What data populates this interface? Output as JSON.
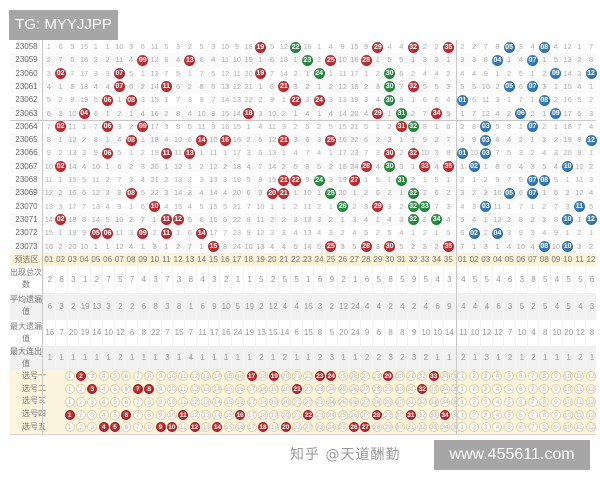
{
  "watermarks": {
    "tg": "TG: MYYJJPP",
    "site": "www.455611.com",
    "zhihu": "知乎 @天道酬勤"
  },
  "colors": {
    "red_ball": "#b5282e",
    "green_ball": "#1e8a3a",
    "blue_ball": "#2d74b0",
    "header_bg": "#fbf3d6"
  },
  "rows": [
    {
      "issue": "23058",
      "red": [
        1,
        6,
        5,
        15,
        1,
        1,
        10,
        3,
        6,
        11,
        5,
        3,
        2,
        5,
        3,
        10,
        9,
        18,
        "19",
        5,
        12,
        "22",
        16,
        1,
        4,
        9,
        15,
        9,
        "29",
        4,
        4,
        "32",
        2,
        2,
        "35"
      ],
      "blue": [
        2,
        2,
        7,
        8,
        "05",
        3,
        4,
        "08",
        4,
        12,
        1,
        7
      ],
      "green": [
        22
      ]
    },
    {
      "issue": "23059",
      "red": [
        2,
        7,
        6,
        16,
        2,
        2,
        11,
        4,
        "09",
        12,
        6,
        4,
        "13",
        6,
        4,
        11,
        10,
        19,
        1,
        6,
        13,
        1,
        "23",
        2,
        "25",
        10,
        16,
        "28",
        1,
        5,
        5,
        1,
        3,
        3,
        1
      ],
      "blue": [
        3,
        3,
        8,
        "04",
        1,
        4,
        "07",
        1,
        5,
        13,
        2,
        8
      ],
      "green": [
        23
      ]
    },
    {
      "issue": "23060",
      "red": [
        3,
        "02",
        7,
        17,
        3,
        3,
        "07",
        5,
        1,
        13,
        7,
        5,
        1,
        7,
        5,
        12,
        11,
        20,
        "19",
        7,
        14,
        2,
        1,
        "24",
        1,
        11,
        17,
        1,
        2,
        "30",
        6,
        2,
        4,
        4,
        2
      ],
      "blue": [
        4,
        4,
        9,
        1,
        2,
        5,
        1,
        2,
        "09",
        14,
        3,
        "12"
      ],
      "green": [
        24,
        30
      ]
    },
    {
      "issue": "23061",
      "red": [
        4,
        1,
        8,
        18,
        4,
        4,
        "07",
        6,
        2,
        14,
        "11",
        6,
        2,
        8,
        6,
        13,
        12,
        21,
        1,
        8,
        "21",
        3,
        2,
        1,
        2,
        12,
        18,
        2,
        3,
        "30",
        7,
        "32",
        5,
        5,
        3
      ],
      "blue": [
        5,
        5,
        10,
        2,
        "05",
        6,
        "07",
        3,
        1,
        15,
        4,
        1
      ],
      "green": [
        30
      ]
    },
    {
      "issue": "23062",
      "red": [
        5,
        2,
        9,
        19,
        5,
        "06",
        1,
        "08",
        3,
        15,
        1,
        7,
        3,
        9,
        7,
        14,
        13,
        22,
        2,
        9,
        1,
        "22",
        3,
        "24",
        3,
        13,
        19,
        3,
        4,
        "30",
        8,
        1,
        6,
        6,
        4
      ],
      "blue": [
        "01",
        6,
        11,
        3,
        1,
        7,
        1,
        "08",
        2,
        16,
        5,
        2
      ],
      "green": [
        30
      ]
    },
    {
      "issue": "23063",
      "red": [
        6,
        3,
        10,
        "04",
        6,
        1,
        2,
        1,
        4,
        16,
        2,
        8,
        4,
        10,
        8,
        15,
        14,
        "18",
        3,
        10,
        2,
        1,
        4,
        1,
        4,
        14,
        20,
        4,
        "29",
        1,
        "31",
        2,
        7,
        "34",
        5
      ],
      "blue": [
        1,
        7,
        12,
        4,
        2,
        "06",
        2,
        1,
        "09",
        17,
        6,
        3
      ],
      "green": [
        31
      ]
    },
    {
      "issue": "23064",
      "red": [
        7,
        "02",
        11,
        1,
        7,
        "06",
        3,
        2,
        "09",
        17,
        3,
        9,
        5,
        11,
        9,
        16,
        15,
        1,
        4,
        11,
        3,
        2,
        5,
        2,
        5,
        15,
        21,
        5,
        1,
        2,
        "31",
        "32",
        8,
        1,
        6
      ],
      "blue": [
        2,
        8,
        "03",
        5,
        3,
        1,
        "07",
        2,
        1,
        18,
        7,
        4
      ],
      "green": [
        32
      ]
    },
    {
      "issue": "23065",
      "red": [
        8,
        1,
        12,
        2,
        8,
        1,
        4,
        "08",
        1,
        18,
        4,
        10,
        6,
        "14",
        10,
        "16",
        16,
        2,
        5,
        12,
        "21",
        3,
        6,
        3,
        "25",
        16,
        22,
        6,
        2,
        3,
        1,
        1,
        9,
        2,
        7
      ],
      "blue": [
        3,
        9,
        "03",
        6,
        4,
        2,
        1,
        3,
        2,
        19,
        8,
        "12"
      ],
      "green": []
    },
    {
      "issue": "23066",
      "red": [
        9,
        2,
        13,
        3,
        9,
        "06",
        5,
        1,
        2,
        19,
        "11",
        11,
        "13",
        1,
        11,
        1,
        17,
        3,
        6,
        13,
        1,
        4,
        7,
        4,
        1,
        17,
        23,
        7,
        3,
        "30",
        2,
        "32",
        10,
        3,
        8
      ],
      "blue": [
        "01",
        10,
        "03",
        7,
        5,
        3,
        2,
        4,
        3,
        20,
        9,
        1
      ],
      "green": []
    },
    {
      "issue": "23067",
      "red": [
        10,
        "02",
        14,
        4,
        10,
        1,
        6,
        2,
        3,
        20,
        1,
        12,
        1,
        2,
        12,
        2,
        18,
        4,
        7,
        14,
        2,
        5,
        8,
        5,
        2,
        18,
        24,
        "28",
        4,
        "30",
        3,
        1,
        "33",
        4,
        "35"
      ],
      "blue": [
        1,
        "02",
        1,
        8,
        6,
        4,
        3,
        5,
        4,
        "10",
        10,
        2
      ],
      "green": [
        30
      ]
    },
    {
      "issue": "23068",
      "red": [
        11,
        1,
        15,
        5,
        11,
        2,
        7,
        3,
        4,
        21,
        2,
        13,
        2,
        3,
        13,
        3,
        19,
        5,
        8,
        15,
        "21",
        "22",
        9,
        "24",
        3,
        19,
        "27",
        1,
        5,
        1,
        "31",
        2,
        1,
        5,
        1
      ],
      "blue": [
        2,
        1,
        2,
        9,
        7,
        5,
        "07",
        "08",
        5,
        1,
        11,
        3
      ],
      "green": [
        24,
        31
      ]
    },
    {
      "issue": "23069",
      "red": [
        12,
        2,
        16,
        6,
        12,
        3,
        8,
        "08",
        5,
        22,
        3,
        14,
        3,
        4,
        14,
        4,
        20,
        6,
        9,
        "20",
        "21",
        1,
        10,
        1,
        "25",
        20,
        1,
        2,
        6,
        2,
        1,
        "32",
        2,
        6,
        2
      ],
      "blue": [
        3,
        2,
        3,
        10,
        "05",
        6,
        "07",
        1,
        6,
        2,
        12,
        4
      ],
      "green": [
        25,
        32
      ]
    },
    {
      "issue": "23070",
      "red": [
        13,
        3,
        17,
        7,
        13,
        4,
        9,
        1,
        6,
        "10",
        4,
        15,
        4,
        5,
        15,
        5,
        21,
        7,
        10,
        1,
        1,
        2,
        11,
        2,
        1,
        "26",
        2,
        3,
        "29",
        3,
        2,
        "32",
        "33",
        7,
        3
      ],
      "blue": [
        4,
        3,
        "03",
        11,
        1,
        7,
        1,
        2,
        7,
        3,
        "11",
        5
      ],
      "green": [
        26,
        32,
        33
      ]
    },
    {
      "issue": "23071",
      "red": [
        14,
        "02",
        18,
        8,
        14,
        5,
        10,
        2,
        7,
        1,
        "11",
        "12",
        5,
        6,
        16,
        6,
        22,
        8,
        11,
        2,
        2,
        3,
        12,
        3,
        2,
        1,
        3,
        4,
        1,
        4,
        3,
        "32",
        1,
        "34",
        4
      ],
      "blue": [
        5,
        4,
        1,
        12,
        2,
        8,
        2,
        3,
        8,
        "10",
        1,
        "12"
      ],
      "green": [
        32,
        34
      ]
    },
    {
      "issue": "23072",
      "red": [
        15,
        1,
        19,
        9,
        "05",
        "06",
        11,
        3,
        "09",
        2,
        "11",
        1,
        6,
        "14",
        17,
        7,
        23,
        9,
        12,
        3,
        3,
        4,
        13,
        4,
        3,
        2,
        4,
        5,
        2,
        5,
        4,
        1,
        2,
        1,
        5
      ],
      "blue": [
        6,
        "02",
        2,
        "04",
        3,
        9,
        3,
        4,
        9,
        1,
        2,
        1
      ],
      "green": []
    },
    {
      "issue": "23073",
      "red": [
        16,
        2,
        20,
        10,
        1,
        1,
        12,
        4,
        1,
        3,
        1,
        2,
        7,
        1,
        "15",
        8,
        24,
        10,
        13,
        4,
        4,
        5,
        14,
        5,
        "25",
        3,
        5,
        "28",
        3,
        "30",
        5,
        2,
        3,
        2,
        "35"
      ],
      "blue": [
        7,
        1,
        3,
        1,
        4,
        10,
        4,
        "08",
        10,
        "10",
        3,
        2
      ],
      "green": []
    }
  ],
  "header": {
    "label": "预选区",
    "red": [
      "01",
      "02",
      "03",
      "04",
      "05",
      "06",
      "07",
      "08",
      "09",
      "10",
      "11",
      "12",
      "13",
      "14",
      "15",
      "16",
      "17",
      "18",
      "19",
      "20",
      "21",
      "22",
      "23",
      "24",
      "25",
      "26",
      "27",
      "28",
      "29",
      "30",
      "31",
      "32",
      "33",
      "34",
      "35"
    ],
    "blue": [
      "01",
      "02",
      "03",
      "04",
      "05",
      "06",
      "07",
      "08",
      "09",
      "10",
      "11",
      "12"
    ]
  },
  "stats": [
    {
      "label": "出现总次数",
      "red": [
        2,
        6,
        3,
        1,
        2,
        7,
        5,
        7,
        4,
        3,
        7,
        3,
        8,
        4,
        3,
        2,
        1,
        1,
        5,
        2,
        5,
        5,
        1,
        6,
        9,
        2,
        1,
        6,
        5,
        8,
        5,
        9,
        5,
        4,
        3
      ],
      "blue": [
        4,
        5,
        5,
        4,
        6,
        3,
        8,
        5,
        4,
        5,
        5,
        6
      ]
    },
    {
      "label": "平均遗漏值",
      "red": [
        6,
        3,
        2,
        19,
        13,
        3,
        2,
        2,
        6,
        8,
        3,
        8,
        1,
        6,
        9,
        10,
        5,
        19,
        2,
        12,
        4,
        4,
        15,
        3,
        2,
        12,
        24,
        4,
        4,
        2,
        4,
        2,
        4,
        6,
        9
      ],
      "blue": [
        4,
        4,
        4,
        6,
        3,
        5,
        2,
        5,
        4,
        5,
        4,
        3
      ]
    },
    {
      "label": "最大遗漏值",
      "red": [
        16,
        7,
        20,
        19,
        14,
        10,
        12,
        6,
        8,
        22,
        7,
        15,
        7,
        11,
        17,
        16,
        24,
        19,
        13,
        15,
        14,
        6,
        15,
        8,
        5,
        20,
        24,
        9,
        6,
        8,
        8,
        9,
        10,
        10,
        14
      ],
      "blue": [
        11,
        10,
        12,
        12,
        7,
        10,
        4,
        8,
        10,
        20,
        12,
        8
      ]
    },
    {
      "label": "最大连出值",
      "red": [
        1,
        1,
        1,
        1,
        1,
        1,
        2,
        1,
        1,
        1,
        3,
        1,
        4,
        1,
        1,
        1,
        1,
        1,
        2,
        1,
        2,
        1,
        1,
        2,
        3,
        1,
        1,
        2,
        2,
        3,
        2,
        3,
        2,
        1,
        1
      ],
      "blue": [
        2,
        1,
        3,
        1,
        2,
        1,
        2,
        1,
        1,
        1,
        2,
        1
      ]
    }
  ],
  "selections": [
    {
      "label": "选号一",
      "red_selected": [
        2,
        17,
        19,
        23,
        24,
        29,
        33
      ],
      "blue_selected": []
    },
    {
      "label": "选号二",
      "red_selected": [
        3,
        7,
        8,
        21,
        32
      ],
      "blue_selected": []
    },
    {
      "label": "选号三",
      "red_selected": [],
      "blue_selected": []
    },
    {
      "label": "选号四",
      "red_selected": [
        1,
        6,
        11,
        16,
        22,
        28,
        31,
        34
      ],
      "blue_selected": []
    },
    {
      "label": "选号五",
      "red_selected": [
        4,
        5,
        9,
        10,
        12,
        14,
        18,
        20,
        26,
        27
      ],
      "blue_selected": []
    }
  ]
}
